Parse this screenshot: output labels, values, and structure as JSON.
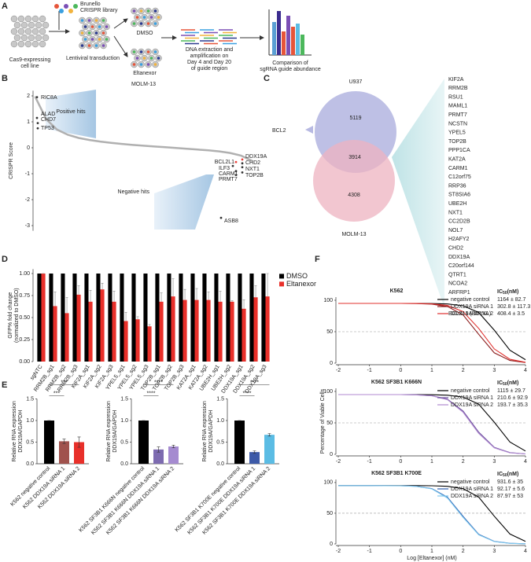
{
  "panel_labels": [
    "A",
    "B",
    "C",
    "D",
    "E",
    "F"
  ],
  "diagram": {
    "library": [
      "Brunello",
      "CRISPR library"
    ],
    "cell_line": [
      "Cas9-expressing",
      "cell line"
    ],
    "transduction": "Lentiviral transduction",
    "dmso": "DMSO",
    "eltanexor": "Eltanexor",
    "dna": [
      "DNA extraction and",
      "amplification on",
      "Day 4 and Day 20",
      "of guide region"
    ],
    "comparison": [
      "Comparison of",
      "sgRNA guide abundance"
    ]
  },
  "venn": {
    "top_label": "U937",
    "bottom_label": "MOLM-13",
    "top_only": 5119,
    "overlap": 3914,
    "bottom_only": 4308,
    "bcl2": "BCL2",
    "bcl2_color": "#e8403a",
    "genes": [
      "KIF2A",
      "RRM2B",
      "RSU1",
      "MAML1",
      "PRMT7",
      "NCSTN",
      "YPEL5",
      "TOP2B",
      "PPP1CA",
      "KAT2A",
      "CARM1",
      "C12orf75",
      "RRP36",
      "ST8SIA6",
      "UBE2H",
      "NXT1",
      "CC2D2B",
      "NOL7",
      "H2AFY2",
      "CHD2",
      "DDX19A",
      "C20orf144",
      "QTRT1",
      "NCOA2",
      "ARFRP1"
    ],
    "gene_colors": [
      "#222",
      "#222",
      "#222",
      "#222",
      "#222",
      "#222",
      "#222",
      "#222",
      "#222",
      "#222",
      "#222",
      "#222",
      "#222",
      "#222",
      "#222",
      "#222",
      "#222",
      "#222",
      "#222",
      "#222",
      "#e8403a",
      "#222",
      "#222",
      "#222",
      "#222"
    ],
    "bcl2l1": "BCL2L1 (BCLXL)",
    "bcl2l1_color": "#e8403a"
  },
  "chart_data": [
    {
      "type": "line",
      "title": "MOLM-13",
      "ylabel": "CRISPR Score",
      "color": "#b0b0b0",
      "values": [
        1.95,
        1.1,
        0.7,
        0.5,
        0.38,
        0.3,
        0.24,
        0.19,
        0.15,
        0.11,
        0.08,
        0.05,
        0.02,
        -0.01,
        -0.04,
        -0.07,
        -0.1,
        -0.14,
        -0.2,
        -0.3,
        -0.5
      ],
      "ylim": [
        -3.2,
        2.2
      ],
      "yticks": [
        -3,
        -2,
        -1,
        0,
        1,
        2
      ],
      "highlights": [
        {
          "label": "RIC8A",
          "value": 1.95,
          "color": "#333"
        },
        {
          "label": "ALAD",
          "value": 1.15,
          "color": "#333"
        },
        {
          "label": "CHD7",
          "value": 0.95,
          "color": "#333"
        },
        {
          "label": "TP53",
          "value": 0.75,
          "color": "#333"
        },
        {
          "label": "DDX19A",
          "value": -0.45,
          "color": "#e8403a"
        },
        {
          "label": "BCL2L1",
          "value": -0.55,
          "color": "#e8403a"
        },
        {
          "label": "CHD2",
          "value": -0.6,
          "color": "#333"
        },
        {
          "label": "ILF3",
          "value": -0.7,
          "color": "#333"
        },
        {
          "label": "NXT1",
          "value": -0.75,
          "color": "#333"
        },
        {
          "label": "CARM1",
          "value": -0.9,
          "color": "#333"
        },
        {
          "label": "TOP2B",
          "value": -0.95,
          "color": "#333"
        },
        {
          "label": "PRMT7",
          "value": -1.05,
          "color": "#333"
        },
        {
          "label": "ASB8",
          "value": -2.7,
          "color": "#333"
        }
      ],
      "regions": [
        "Positive hits",
        "Negative hits"
      ]
    },
    {
      "type": "bar",
      "ylabel": [
        "GFP% fold change",
        "(normalized to DMSO)"
      ],
      "categories": [
        "sgNTC",
        "RRM2B_sg1",
        "RRM2B_sg2",
        "RRM2B_sg3",
        "KIF2A_sg1",
        "KIF2A_sg2",
        "KIF2A_sg3",
        "YPEL5_sg1",
        "YPEL5_sg2",
        "YPEL5_sg3",
        "TOP2B_sg1",
        "TOP2B_sg2",
        "TOP2B_sg3",
        "KAT2A_sg1",
        "KAT2A_sg2",
        "UBE2H_sg1",
        "UBE2H_sg2",
        "DDX19A_sg1",
        "DDX19A_sg2",
        "DDX19A_sg3"
      ],
      "series": [
        {
          "name": "DMSO",
          "color": "#000000",
          "values": [
            1,
            1,
            1,
            1,
            1,
            1,
            1,
            1,
            1,
            1,
            1,
            1,
            1,
            1,
            1,
            1,
            1,
            1,
            1,
            1
          ]
        },
        {
          "name": "Eltanexor",
          "color": "#e8302a",
          "values": [
            1,
            0.63,
            0.55,
            0.76,
            0.68,
            0.82,
            0.68,
            0.46,
            0.48,
            0.4,
            0.68,
            0.74,
            0.7,
            0.7,
            0.7,
            0.68,
            0.68,
            0.6,
            0.73,
            0.74
          ],
          "errors": [
            0,
            0.16,
            0.18,
            0.1,
            0.13,
            0.07,
            0.12,
            0.1,
            0.03,
            0.02,
            0.1,
            0.2,
            0.12,
            0.13,
            0.09,
            0.12,
            0.01,
            0.1,
            0.13,
            0.26
          ]
        }
      ],
      "ylim": [
        0,
        1.05
      ],
      "yticks": [
        {
          "value": 0,
          "label": "0.00"
        },
        {
          "value": 0.25,
          "label": "0.25"
        },
        {
          "value": 0.5,
          "label": "0.50"
        },
        {
          "value": 0.75,
          "label": "0.75"
        },
        {
          "value": 1,
          "label": "1.00"
        }
      ],
      "legend": "upper right"
    },
    {
      "type": "bar",
      "ylabel": [
        "Relative RNA expression",
        "DDX19A/GAPDH"
      ],
      "categories": [
        "K562 negative control",
        "K562 DDX19A siRNA 1",
        "K562 DDX19A siRNA 2"
      ],
      "values": [
        1,
        0.52,
        0.5
      ],
      "errors": [
        0,
        0.05,
        0.12
      ],
      "colors": [
        "#000000",
        "#a0524d",
        "#e8302a"
      ],
      "ylim": [
        0,
        1.5
      ],
      "yticks": [
        {
          "value": 0,
          "label": "0.0"
        },
        0.5,
        {
          "value": 1,
          "label": "1.0"
        },
        1.5
      ],
      "significance": [
        "***",
        "***"
      ]
    },
    {
      "type": "bar",
      "ylabel": [
        "Relative RNA expression",
        "DDX19A/GAPDH"
      ],
      "categories": [
        "K562 SF3B1 K666N negative control",
        "K562 SF3B1 K666N DDX19A siRNA 1",
        "K562 SF3B1 K666N DDX19A siRNA 2"
      ],
      "values": [
        1,
        0.33,
        0.4
      ],
      "errors": [
        0,
        0.06,
        0.03
      ],
      "colors": [
        "#000000",
        "#7d6bb0",
        "#a58bd0"
      ],
      "ylim": [
        0,
        1.5
      ],
      "yticks": [
        {
          "value": 0,
          "label": "0.0"
        },
        0.5,
        {
          "value": 1,
          "label": "1.0"
        },
        1.5
      ],
      "significance": [
        "****",
        "****"
      ]
    },
    {
      "type": "bar",
      "ylabel": [
        "Relative RNA expression",
        "DDX19A/GAPDH"
      ],
      "categories": [
        "K562 SF3B1 K700E negative control",
        "K562 SF3B1 K700E DDX19A siRNA 1",
        "K562 SF3B1 K700E DDX19A siRNA 2"
      ],
      "values": [
        1,
        0.27,
        0.67
      ],
      "errors": [
        0,
        0.03,
        0.03
      ],
      "colors": [
        "#000000",
        "#3d5aa8",
        "#5bbce4"
      ],
      "ylim": [
        0,
        1.5
      ],
      "yticks": [
        {
          "value": 0,
          "label": "0.0"
        },
        0.5,
        {
          "value": 1,
          "label": "1.0"
        },
        1.5
      ],
      "significance": [
        "****",
        "****"
      ]
    },
    {
      "type": "line",
      "title": "K562",
      "ic50_header": [
        "IC",
        "50",
        "(nM)"
      ],
      "reference_line": 50,
      "x": [
        -2,
        -1,
        0,
        0.5,
        1,
        1.5,
        2,
        2.5,
        3,
        3.5,
        4
      ],
      "series": [
        {
          "name": "negative control",
          "color": "#000000",
          "ic50": "1164 ± 82.7",
          "values": [
            95,
            95,
            95,
            95,
            94.8,
            94.1,
            91.3,
            80.5,
            52.5,
            20.5,
            5.5
          ]
        },
        {
          "name": "DDX19A siRNA 1",
          "color": "#8b1a1a",
          "ic50": "302.8 ± 117.3",
          "values": [
            95,
            95,
            95,
            94.7,
            93.9,
            90.1,
            76.6,
            45.9,
            16.4,
            4.3,
            1.0
          ]
        },
        {
          "name": "DDX19A siRNA 2",
          "color": "#e0302e",
          "ic50": "408.4 ± 3.5",
          "values": [
            95,
            95,
            95,
            94.9,
            94.2,
            91.7,
            81.9,
            55.2,
            22.6,
            6.1,
            1.4
          ]
        }
      ],
      "xlim": [
        -2,
        4
      ],
      "xticks": [
        -2,
        -1,
        0,
        1,
        2,
        3,
        4
      ],
      "ylim": [
        0,
        105
      ],
      "yticks": [
        0,
        50,
        100
      ]
    },
    {
      "type": "line",
      "title": "K562 SF3B1 K666N",
      "ic50_header": [
        "IC",
        "50",
        "(nM)"
      ],
      "reference_line": 50,
      "ylabel": "Percentage of Viable Cells",
      "x": [
        -2,
        -1,
        0,
        0.5,
        1,
        1.5,
        2,
        2.5,
        3,
        3.5,
        4
      ],
      "series": [
        {
          "name": "negative control",
          "color": "#000000",
          "ic50": "1115 ± 29.7",
          "values": [
            95,
            95,
            95,
            95,
            94.7,
            94.0,
            91.1,
            79.8,
            51.1,
            19.6,
            5.2
          ]
        },
        {
          "name": "DDX19A siRNA 1",
          "color": "#6a4c9c",
          "ic50": "210.6 ± 92.9",
          "values": [
            95,
            95,
            95,
            94.6,
            93.2,
            87.6,
            68.8,
            35.2,
            11.0,
            2.7,
            0.6
          ]
        },
        {
          "name": "DDX19A siRNA 2",
          "color": "#b08ad0",
          "ic50": "193.7 ± 35.3",
          "values": [
            95,
            95,
            95,
            94.5,
            93.0,
            86.9,
            66.9,
            33.2,
            10.2,
            2.4,
            0.6
          ]
        }
      ],
      "xlim": [
        -2,
        4
      ],
      "xticks": [
        -2,
        -1,
        0,
        1,
        2,
        3,
        4
      ],
      "ylim": [
        0,
        105
      ],
      "yticks": [
        0,
        50,
        100
      ]
    },
    {
      "type": "line",
      "title": "K562 SF3B1 K700E",
      "ic50_header": [
        "IC",
        "50",
        "(nM)"
      ],
      "reference_line": 50,
      "xlabel": "Log [Eltanexor] (nM)",
      "x": [
        -2,
        -1,
        0,
        0.5,
        1,
        1.5,
        2,
        2.5,
        3,
        3.5,
        4
      ],
      "series": [
        {
          "name": "negative control",
          "color": "#000000",
          "ic50": "931.6 ± 35",
          "values": [
            95,
            95,
            95,
            95,
            94.7,
            93.9,
            90.0,
            76.3,
            45.2,
            16.1,
            4.1
          ]
        },
        {
          "name": "DDX19A siRNA 1",
          "color": "#2f5fb0",
          "ic50": "92.17 ± 5.6",
          "values": [
            95,
            95,
            94.7,
            93.8,
            90.0,
            76.0,
            44.8,
            15.8,
            4.1,
            1.0,
            0.2
          ]
        },
        {
          "name": "DDX19A siRNA 2",
          "color": "#7ec8ee",
          "ic50": "87.97 ± 53",
          "values": [
            95,
            95,
            94.6,
            93.7,
            89.6,
            74.8,
            43.2,
            14.8,
            3.8,
            0.9,
            0.2
          ]
        }
      ],
      "xlim": [
        -2,
        4
      ],
      "xticks": [
        -2,
        -1,
        0,
        1,
        2,
        3,
        4
      ],
      "ylim": [
        0,
        105
      ],
      "yticks": [
        0,
        50,
        100
      ]
    }
  ]
}
